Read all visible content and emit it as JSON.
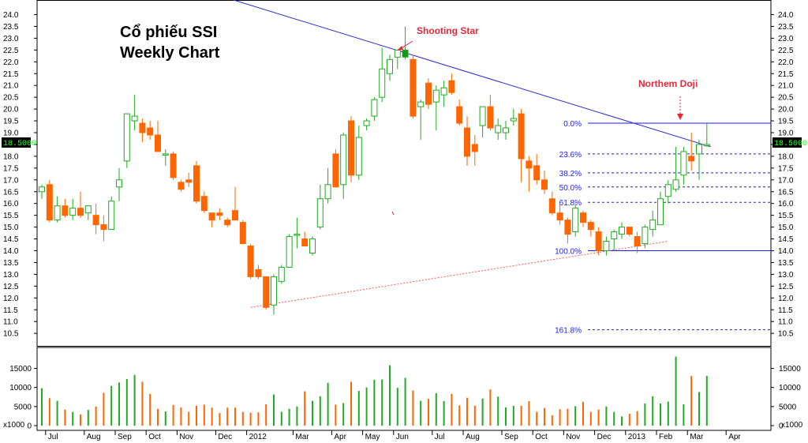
{
  "chart_data": {
    "type": "candlestick",
    "title_lines": [
      "Cổ phiếu SSI",
      "Weekly Chart"
    ],
    "price_axis": {
      "min": 10.5,
      "max": 24.0,
      "step": 0.5
    },
    "last_price_badge": "18.5000",
    "volume_axis": {
      "ticks": [
        0,
        5000,
        10000,
        15000
      ],
      "multiplier_label": "x1000"
    },
    "months": [
      {
        "label": "Jul",
        "week": 1
      },
      {
        "label": "Aug",
        "week": 6
      },
      {
        "label": "Sep",
        "week": 10
      },
      {
        "label": "Oct",
        "week": 14
      },
      {
        "label": "Nov",
        "week": 18
      },
      {
        "label": "Dec",
        "week": 23
      },
      {
        "label": "2012",
        "week": 27
      },
      {
        "label": "Mar",
        "week": 33
      },
      {
        "label": "Apr",
        "week": 38
      },
      {
        "label": "May",
        "week": 42
      },
      {
        "label": "Jun",
        "week": 46
      },
      {
        "label": "Jul",
        "week": 51
      },
      {
        "label": "Aug",
        "week": 55
      },
      {
        "label": "Sep",
        "week": 60
      },
      {
        "label": "Oct",
        "week": 64
      },
      {
        "label": "Nov",
        "week": 68
      },
      {
        "label": "Dec",
        "week": 72
      },
      {
        "label": "2013",
        "week": 76
      },
      {
        "label": "Feb",
        "week": 80
      },
      {
        "label": "Mar",
        "week": 84
      },
      {
        "label": "Apr",
        "week": 89
      }
    ],
    "candles": [
      {
        "o": 16.5,
        "h": 16.8,
        "l": 16.2,
        "c": 16.7
      },
      {
        "o": 16.8,
        "h": 17.0,
        "l": 15.2,
        "c": 15.3
      },
      {
        "o": 15.3,
        "h": 16.3,
        "l": 15.2,
        "c": 15.9
      },
      {
        "o": 15.9,
        "h": 16.2,
        "l": 15.4,
        "c": 15.5
      },
      {
        "o": 15.5,
        "h": 16.2,
        "l": 15.3,
        "c": 15.8
      },
      {
        "o": 15.8,
        "h": 16.5,
        "l": 15.4,
        "c": 15.5
      },
      {
        "o": 15.6,
        "h": 15.9,
        "l": 15.3,
        "c": 15.9
      },
      {
        "o": 15.5,
        "h": 16.0,
        "l": 14.7,
        "c": 15.1
      },
      {
        "o": 15.1,
        "h": 15.5,
        "l": 14.4,
        "c": 14.9
      },
      {
        "o": 14.9,
        "h": 16.3,
        "l": 14.9,
        "c": 16.1
      },
      {
        "o": 16.7,
        "h": 17.5,
        "l": 16.1,
        "c": 17.0
      },
      {
        "o": 17.8,
        "h": 19.8,
        "l": 17.5,
        "c": 19.8
      },
      {
        "o": 19.5,
        "h": 20.6,
        "l": 19.1,
        "c": 19.7
      },
      {
        "o": 19.4,
        "h": 19.6,
        "l": 18.6,
        "c": 19.0
      },
      {
        "o": 19.2,
        "h": 19.5,
        "l": 18.7,
        "c": 18.9
      },
      {
        "o": 18.9,
        "h": 19.5,
        "l": 18.2,
        "c": 18.2
      },
      {
        "o": 18.1,
        "h": 18.3,
        "l": 17.6,
        "c": 18.1
      },
      {
        "o": 18.1,
        "h": 18.2,
        "l": 17.0,
        "c": 17.1
      },
      {
        "o": 16.9,
        "h": 17.0,
        "l": 16.5,
        "c": 16.6
      },
      {
        "o": 17.0,
        "h": 17.3,
        "l": 16.7,
        "c": 16.9
      },
      {
        "o": 17.6,
        "h": 17.8,
        "l": 16.0,
        "c": 16.1
      },
      {
        "o": 16.3,
        "h": 16.5,
        "l": 15.6,
        "c": 15.7
      },
      {
        "o": 15.6,
        "h": 15.6,
        "l": 15.0,
        "c": 15.3
      },
      {
        "o": 15.6,
        "h": 15.8,
        "l": 15.3,
        "c": 15.5
      },
      {
        "o": 15.3,
        "h": 15.4,
        "l": 15.0,
        "c": 15.1
      },
      {
        "o": 15.7,
        "h": 16.7,
        "l": 15.3,
        "c": 15.3
      },
      {
        "o": 15.2,
        "h": 15.3,
        "l": 14.3,
        "c": 14.3
      },
      {
        "o": 14.2,
        "h": 14.3,
        "l": 12.8,
        "c": 12.9
      },
      {
        "o": 13.2,
        "h": 13.4,
        "l": 12.8,
        "c": 12.9
      },
      {
        "o": 12.9,
        "h": 12.9,
        "l": 11.5,
        "c": 11.6
      },
      {
        "o": 11.7,
        "h": 13.0,
        "l": 11.3,
        "c": 12.9
      },
      {
        "o": 12.7,
        "h": 13.4,
        "l": 12.6,
        "c": 13.3
      },
      {
        "o": 13.3,
        "h": 14.7,
        "l": 13.3,
        "c": 14.6
      },
      {
        "o": 14.7,
        "h": 15.4,
        "l": 14.1,
        "c": 14.7
      },
      {
        "o": 14.5,
        "h": 14.8,
        "l": 14.2,
        "c": 14.2
      },
      {
        "o": 13.9,
        "h": 14.6,
        "l": 13.8,
        "c": 14.5
      },
      {
        "o": 15.0,
        "h": 16.8,
        "l": 14.9,
        "c": 16.2
      },
      {
        "o": 16.2,
        "h": 17.5,
        "l": 16.0,
        "c": 16.8
      },
      {
        "o": 18.1,
        "h": 18.3,
        "l": 16.7,
        "c": 16.7
      },
      {
        "o": 16.8,
        "h": 19.0,
        "l": 16.2,
        "c": 18.9
      },
      {
        "o": 19.5,
        "h": 19.7,
        "l": 16.9,
        "c": 17.2
      },
      {
        "o": 17.2,
        "h": 19.3,
        "l": 17.0,
        "c": 18.8
      },
      {
        "o": 19.3,
        "h": 19.6,
        "l": 19.1,
        "c": 19.5
      },
      {
        "o": 19.7,
        "h": 20.5,
        "l": 19.5,
        "c": 20.4
      },
      {
        "o": 20.5,
        "h": 22.6,
        "l": 20.3,
        "c": 21.7
      },
      {
        "o": 21.5,
        "h": 22.3,
        "l": 21.2,
        "c": 22.1
      },
      {
        "o": 22.2,
        "h": 22.5,
        "l": 21.7,
        "c": 22.5
      },
      {
        "o": 22.2,
        "h": 23.5,
        "l": 22.1,
        "c": 22.5
      },
      {
        "o": 22.1,
        "h": 22.3,
        "l": 19.6,
        "c": 19.7
      },
      {
        "o": 20.1,
        "h": 20.4,
        "l": 18.7,
        "c": 20.3
      },
      {
        "o": 21.1,
        "h": 21.3,
        "l": 20.0,
        "c": 20.2
      },
      {
        "o": 20.3,
        "h": 21.0,
        "l": 19.1,
        "c": 20.8
      },
      {
        "o": 20.6,
        "h": 21.2,
        "l": 20.1,
        "c": 20.9
      },
      {
        "o": 21.2,
        "h": 21.5,
        "l": 20.6,
        "c": 20.7
      },
      {
        "o": 20.1,
        "h": 20.4,
        "l": 19.3,
        "c": 19.4
      },
      {
        "o": 19.2,
        "h": 19.7,
        "l": 17.6,
        "c": 18.0
      },
      {
        "o": 18.5,
        "h": 18.9,
        "l": 17.6,
        "c": 18.2
      },
      {
        "o": 19.3,
        "h": 20.1,
        "l": 18.8,
        "c": 20.1
      },
      {
        "o": 20.1,
        "h": 20.6,
        "l": 19.1,
        "c": 19.2
      },
      {
        "o": 19.0,
        "h": 19.6,
        "l": 18.7,
        "c": 19.3
      },
      {
        "o": 19.0,
        "h": 19.5,
        "l": 18.7,
        "c": 19.2
      },
      {
        "o": 19.5,
        "h": 20.0,
        "l": 19.3,
        "c": 19.6
      },
      {
        "o": 19.8,
        "h": 20.0,
        "l": 16.9,
        "c": 17.9
      },
      {
        "o": 17.8,
        "h": 18.0,
        "l": 16.5,
        "c": 17.5
      },
      {
        "o": 17.6,
        "h": 18.1,
        "l": 16.8,
        "c": 17.0
      },
      {
        "o": 17.0,
        "h": 17.4,
        "l": 16.4,
        "c": 16.6
      },
      {
        "o": 16.2,
        "h": 16.5,
        "l": 15.5,
        "c": 15.6
      },
      {
        "o": 15.6,
        "h": 16.0,
        "l": 15.1,
        "c": 15.3
      },
      {
        "o": 15.3,
        "h": 15.4,
        "l": 14.3,
        "c": 14.7
      },
      {
        "o": 14.8,
        "h": 16.0,
        "l": 14.6,
        "c": 15.8
      },
      {
        "o": 15.6,
        "h": 15.7,
        "l": 15.0,
        "c": 15.2
      },
      {
        "o": 15.2,
        "h": 15.3,
        "l": 14.6,
        "c": 14.9
      },
      {
        "o": 14.8,
        "h": 15.0,
        "l": 13.8,
        "c": 14.0
      },
      {
        "o": 14.0,
        "h": 14.6,
        "l": 13.8,
        "c": 14.4
      },
      {
        "o": 14.5,
        "h": 14.9,
        "l": 14.0,
        "c": 14.8
      },
      {
        "o": 14.7,
        "h": 15.2,
        "l": 14.5,
        "c": 15.0
      },
      {
        "o": 15.0,
        "h": 15.0,
        "l": 14.6,
        "c": 14.7
      },
      {
        "o": 14.6,
        "h": 14.8,
        "l": 13.9,
        "c": 14.2
      },
      {
        "o": 14.3,
        "h": 15.1,
        "l": 14.1,
        "c": 15.0
      },
      {
        "o": 14.9,
        "h": 15.7,
        "l": 14.6,
        "c": 15.3
      },
      {
        "o": 15.1,
        "h": 16.5,
        "l": 15.1,
        "c": 16.2
      },
      {
        "o": 16.3,
        "h": 17.0,
        "l": 16.0,
        "c": 16.8
      },
      {
        "o": 16.6,
        "h": 18.4,
        "l": 16.5,
        "c": 17.0
      },
      {
        "o": 17.2,
        "h": 18.4,
        "l": 16.8,
        "c": 18.2
      },
      {
        "o": 18.0,
        "h": 19.0,
        "l": 17.4,
        "c": 17.8
      },
      {
        "o": 18.1,
        "h": 18.7,
        "l": 17.0,
        "c": 18.5
      },
      {
        "o": 18.5,
        "h": 19.4,
        "l": 18.4,
        "c": 18.5
      }
    ],
    "volumes": [
      9800,
      7200,
      6500,
      4200,
      3600,
      2900,
      4100,
      5000,
      8600,
      10400,
      11300,
      12200,
      13300,
      11500,
      8300,
      4400,
      3700,
      5400,
      4800,
      3600,
      5200,
      5500,
      4700,
      3300,
      4700,
      4700,
      3600,
      3400,
      3500,
      5600,
      8200,
      3600,
      4400,
      5000,
      9000,
      6500,
      7700,
      11200,
      5500,
      5900,
      11500,
      9100,
      10000,
      12000,
      12100,
      15800,
      9900,
      12500,
      9200,
      6500,
      7000,
      8500,
      6400,
      8300,
      5300,
      7300,
      5200,
      7100,
      9500,
      7600,
      4800,
      5200,
      5200,
      6400,
      3600,
      4600,
      2700,
      4300,
      4400,
      5100,
      6200,
      3600,
      4200,
      5000,
      3600,
      2400,
      3100,
      3800,
      5800,
      7700,
      5800,
      6300,
      18100,
      5600,
      13000,
      8800,
      13000
    ],
    "annotations": {
      "shooting_star": "Shooting Star",
      "northern_doji": "Northem Doji"
    },
    "fibonacci": [
      {
        "label": "0.0%",
        "price": 19.4,
        "solid": true
      },
      {
        "label": "23.6%",
        "price": 18.1,
        "solid": false
      },
      {
        "label": "38.2%",
        "price": 17.3,
        "solid": false
      },
      {
        "label": "50.0%",
        "price": 16.7,
        "solid": false
      },
      {
        "label": "61.8%",
        "price": 16.05,
        "solid": false
      },
      {
        "label": "100.0%",
        "price": 14.0,
        "solid": true
      },
      {
        "label": "161.8%",
        "price": 10.65,
        "solid": false
      }
    ],
    "trendlines": {
      "resistance": {
        "color": "#2c2cd6",
        "start": {
          "week": 21.5,
          "price": 24.95
        },
        "end": {
          "week": 86.5,
          "price": 18.4
        }
      },
      "support": {
        "color": "#ff5a5a",
        "start": {
          "week": 27,
          "price": 11.6
        },
        "end": {
          "week": 81,
          "price": 14.4
        }
      }
    },
    "colors": {
      "up": "#22aa22",
      "down": "#ff6600",
      "up_body": "#ffffff",
      "highlight": "#119911",
      "fib": "#1a1aff",
      "annotation": "#e8283a"
    }
  }
}
